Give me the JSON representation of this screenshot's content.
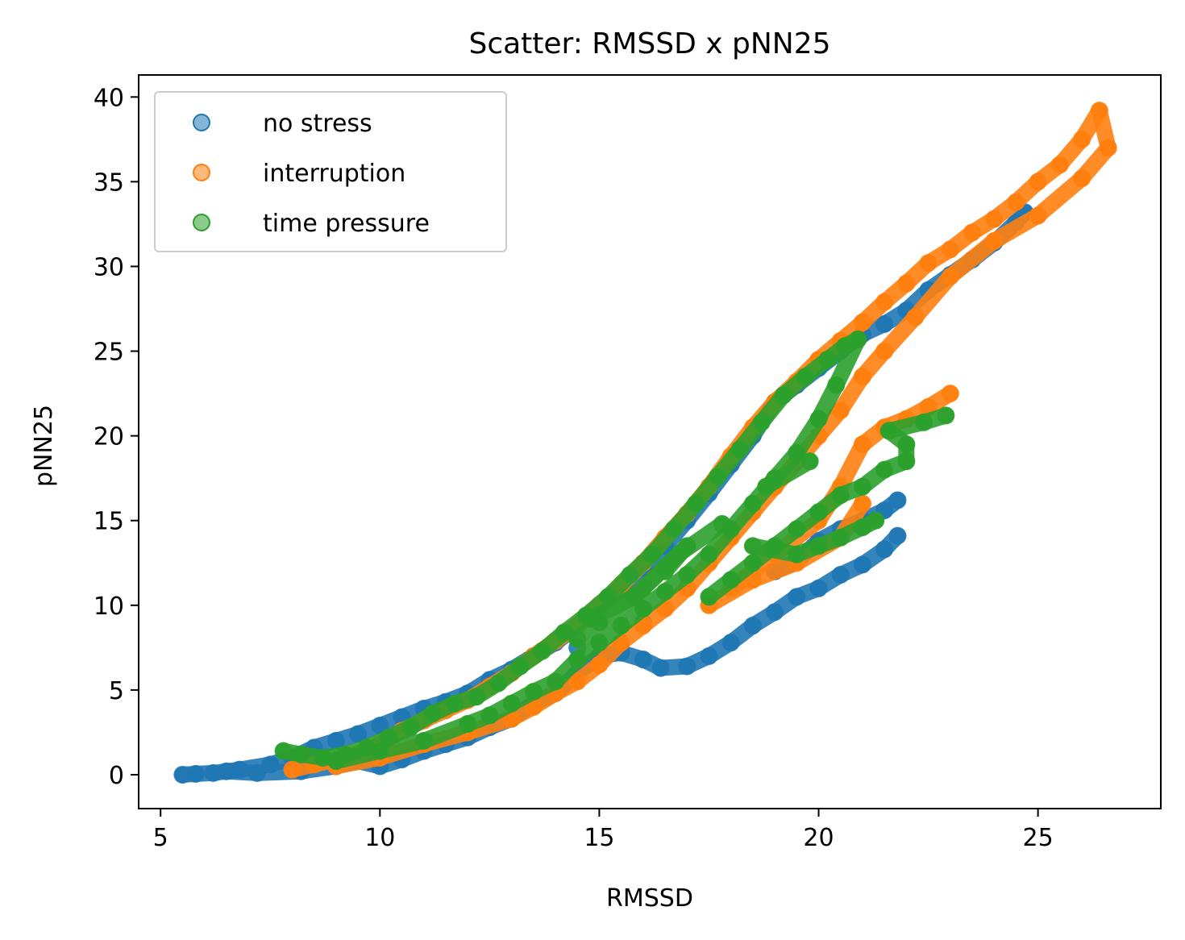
{
  "chart_data": {
    "type": "scatter",
    "title": "Scatter: RMSSD x pNN25",
    "xlabel": "RMSSD",
    "ylabel": "pNN25",
    "xlim": [
      4.5,
      27.8
    ],
    "ylim": [
      -2,
      41.3
    ],
    "xticks": [
      5,
      10,
      15,
      20,
      25
    ],
    "yticks": [
      0,
      5,
      10,
      15,
      20,
      25,
      30,
      35,
      40
    ],
    "grid": false,
    "legend_position": "upper-left",
    "series": [
      {
        "name": "no stress",
        "color": "#1f77b4",
        "points": [
          [
            5.5,
            0.0
          ],
          [
            5.8,
            0.05
          ],
          [
            6.2,
            0.1
          ],
          [
            6.8,
            0.3
          ],
          [
            7.5,
            0.6
          ],
          [
            8.0,
            1.0
          ],
          [
            8.5,
            1.6
          ],
          [
            9.0,
            2.0
          ],
          [
            9.5,
            2.4
          ],
          [
            10.0,
            2.9
          ],
          [
            10.5,
            3.4
          ],
          [
            11.0,
            3.9
          ],
          [
            11.5,
            4.3
          ],
          [
            12.0,
            4.8
          ],
          [
            12.5,
            5.6
          ],
          [
            13.0,
            6.2
          ],
          [
            13.5,
            7.0
          ],
          [
            14.0,
            7.8
          ],
          [
            14.5,
            8.8
          ],
          [
            15.0,
            10.0
          ],
          [
            15.5,
            11.0
          ],
          [
            16.0,
            12.2
          ],
          [
            16.5,
            13.5
          ],
          [
            17.0,
            15.0
          ],
          [
            17.5,
            16.6
          ],
          [
            18.0,
            18.3
          ],
          [
            18.5,
            20.0
          ],
          [
            19.0,
            22.0
          ],
          [
            19.5,
            23.0
          ],
          [
            20.0,
            24.0
          ],
          [
            20.5,
            25.0
          ],
          [
            21.0,
            26.0
          ],
          [
            21.5,
            26.6
          ],
          [
            22.0,
            27.4
          ],
          [
            22.5,
            28.6
          ],
          [
            23.0,
            29.5
          ],
          [
            23.5,
            30.4
          ],
          [
            24.0,
            31.4
          ],
          [
            24.5,
            32.6
          ],
          [
            24.7,
            33.2
          ],
          [
            6.5,
            0.2
          ],
          [
            7.2,
            0.1
          ],
          [
            8.2,
            0.2
          ],
          [
            9.0,
            0.5
          ],
          [
            9.5,
            0.8
          ],
          [
            10.0,
            0.5
          ],
          [
            10.5,
            0.9
          ],
          [
            11.0,
            1.4
          ],
          [
            11.5,
            1.8
          ],
          [
            12.0,
            2.2
          ],
          [
            12.5,
            2.8
          ],
          [
            13.0,
            3.3
          ],
          [
            13.5,
            4.2
          ],
          [
            14.0,
            4.8
          ],
          [
            14.5,
            6.0
          ],
          [
            15.0,
            7.0
          ],
          [
            15.5,
            7.2
          ],
          [
            16.0,
            6.8
          ],
          [
            16.4,
            6.3
          ],
          [
            17.0,
            6.4
          ],
          [
            17.5,
            7.0
          ],
          [
            18.0,
            7.8
          ],
          [
            18.5,
            8.8
          ],
          [
            19.0,
            9.6
          ],
          [
            19.5,
            10.5
          ],
          [
            20.0,
            11.0
          ],
          [
            20.5,
            11.8
          ],
          [
            21.0,
            12.4
          ],
          [
            21.5,
            13.3
          ],
          [
            21.8,
            14.1
          ],
          [
            19.0,
            12.0
          ],
          [
            19.5,
            12.6
          ],
          [
            20.0,
            13.8
          ],
          [
            20.5,
            14.5
          ],
          [
            21.0,
            15.0
          ],
          [
            21.5,
            15.6
          ],
          [
            21.8,
            16.2
          ],
          [
            12.0,
            4.5
          ],
          [
            14.5,
            7.5
          ],
          [
            16.0,
            9.0
          ]
        ]
      },
      {
        "name": "interruption",
        "color": "#ff7f0e",
        "points": [
          [
            8.0,
            0.3
          ],
          [
            8.5,
            0.6
          ],
          [
            9.0,
            0.9
          ],
          [
            9.5,
            1.2
          ],
          [
            10.0,
            1.8
          ],
          [
            10.5,
            2.6
          ],
          [
            11.0,
            3.2
          ],
          [
            11.5,
            3.8
          ],
          [
            12.0,
            4.4
          ],
          [
            12.5,
            5.2
          ],
          [
            13.0,
            6.0
          ],
          [
            13.5,
            7.0
          ],
          [
            14.0,
            7.9
          ],
          [
            14.5,
            8.8
          ],
          [
            15.0,
            10.0
          ],
          [
            15.5,
            11.2
          ],
          [
            16.0,
            12.5
          ],
          [
            16.5,
            14.0
          ],
          [
            17.0,
            15.4
          ],
          [
            17.5,
            17.0
          ],
          [
            18.0,
            18.8
          ],
          [
            18.5,
            20.5
          ],
          [
            19.0,
            22.0
          ],
          [
            19.5,
            23.2
          ],
          [
            20.0,
            24.5
          ],
          [
            20.5,
            25.6
          ],
          [
            21.0,
            26.7
          ],
          [
            21.5,
            27.9
          ],
          [
            22.0,
            29.0
          ],
          [
            22.5,
            30.2
          ],
          [
            23.0,
            31.0
          ],
          [
            23.5,
            32.0
          ],
          [
            24.0,
            32.8
          ],
          [
            24.5,
            33.8
          ],
          [
            25.0,
            35.0
          ],
          [
            25.5,
            36.0
          ],
          [
            26.0,
            37.5
          ],
          [
            26.4,
            39.2
          ],
          [
            26.6,
            37.0
          ],
          [
            26.0,
            35.2
          ],
          [
            25.0,
            33.0
          ],
          [
            24.0,
            31.5
          ],
          [
            23.0,
            29.4
          ],
          [
            22.2,
            27.0
          ],
          [
            21.5,
            25.0
          ],
          [
            21.0,
            23.5
          ],
          [
            20.5,
            21.5
          ],
          [
            20.0,
            20.0
          ],
          [
            19.5,
            18.5
          ],
          [
            19.0,
            17.0
          ],
          [
            18.5,
            15.5
          ],
          [
            18.0,
            14.0
          ],
          [
            17.5,
            12.5
          ],
          [
            17.0,
            11.0
          ],
          [
            16.5,
            9.8
          ],
          [
            16.0,
            8.8
          ],
          [
            15.5,
            7.8
          ],
          [
            15.0,
            6.5
          ],
          [
            14.5,
            5.5
          ],
          [
            14.0,
            4.8
          ],
          [
            13.5,
            4.0
          ],
          [
            13.0,
            3.3
          ],
          [
            12.0,
            2.5
          ],
          [
            11.0,
            1.8
          ],
          [
            10.0,
            1.0
          ],
          [
            9.0,
            0.5
          ],
          [
            18.0,
            11.0
          ],
          [
            19.0,
            13.0
          ],
          [
            20.0,
            15.0
          ],
          [
            20.5,
            17.0
          ],
          [
            21.0,
            19.5
          ],
          [
            21.5,
            20.5
          ],
          [
            22.0,
            21.0
          ],
          [
            22.5,
            21.7
          ],
          [
            23.0,
            22.5
          ],
          [
            21.0,
            16.0
          ],
          [
            20.5,
            14.0
          ],
          [
            19.5,
            12.5
          ],
          [
            18.5,
            11.5
          ],
          [
            17.5,
            10.0
          ]
        ]
      },
      {
        "name": "time pressure",
        "color": "#2ca02c",
        "points": [
          [
            7.8,
            1.4
          ],
          [
            8.2,
            1.2
          ],
          [
            8.7,
            1.0
          ],
          [
            9.2,
            1.2
          ],
          [
            9.7,
            1.6
          ],
          [
            10.2,
            2.2
          ],
          [
            10.7,
            2.8
          ],
          [
            11.2,
            3.6
          ],
          [
            11.7,
            4.2
          ],
          [
            12.2,
            4.6
          ],
          [
            12.7,
            5.4
          ],
          [
            13.2,
            6.4
          ],
          [
            13.7,
            7.3
          ],
          [
            14.2,
            8.4
          ],
          [
            14.7,
            9.4
          ],
          [
            15.2,
            10.5
          ],
          [
            15.7,
            11.8
          ],
          [
            16.2,
            13.0
          ],
          [
            16.7,
            14.5
          ],
          [
            17.2,
            16.0
          ],
          [
            17.7,
            17.6
          ],
          [
            18.2,
            19.2
          ],
          [
            18.7,
            20.8
          ],
          [
            19.2,
            22.4
          ],
          [
            19.7,
            23.5
          ],
          [
            20.2,
            24.5
          ],
          [
            20.6,
            25.3
          ],
          [
            20.9,
            25.7
          ],
          [
            20.4,
            23.0
          ],
          [
            20.0,
            21.0
          ],
          [
            19.5,
            19.0
          ],
          [
            19.0,
            17.5
          ],
          [
            18.5,
            16.0
          ],
          [
            18.0,
            14.5
          ],
          [
            17.5,
            13.0
          ],
          [
            17.0,
            11.8
          ],
          [
            16.5,
            10.8
          ],
          [
            16.0,
            9.8
          ],
          [
            15.5,
            8.8
          ],
          [
            15.0,
            7.8
          ],
          [
            14.5,
            6.8
          ],
          [
            14.0,
            5.5
          ],
          [
            13.5,
            4.9
          ],
          [
            13.0,
            4.2
          ],
          [
            12.5,
            3.5
          ],
          [
            12.0,
            3.0
          ],
          [
            11.0,
            2.0
          ],
          [
            10.0,
            1.4
          ],
          [
            9.0,
            0.8
          ],
          [
            17.5,
            10.5
          ],
          [
            18.0,
            11.5
          ],
          [
            18.5,
            12.5
          ],
          [
            19.0,
            13.5
          ],
          [
            19.5,
            14.5
          ],
          [
            20.0,
            15.5
          ],
          [
            20.5,
            16.5
          ],
          [
            21.0,
            17.0
          ],
          [
            21.5,
            18.0
          ],
          [
            22.0,
            18.5
          ],
          [
            22.0,
            19.5
          ],
          [
            21.6,
            20.3
          ],
          [
            22.4,
            20.8
          ],
          [
            22.9,
            21.2
          ],
          [
            18.5,
            13.5
          ],
          [
            19.5,
            13.0
          ],
          [
            20.0,
            13.5
          ],
          [
            20.5,
            14.0
          ],
          [
            21.0,
            14.6
          ],
          [
            21.3,
            15.0
          ],
          [
            16.5,
            12.0
          ],
          [
            17.0,
            13.5
          ],
          [
            16.0,
            11.0
          ],
          [
            15.0,
            9.0
          ],
          [
            14.5,
            8.0
          ],
          [
            18.8,
            17.0
          ],
          [
            19.8,
            18.5
          ],
          [
            17.8,
            14.8
          ],
          [
            16.8,
            13.0
          ],
          [
            15.8,
            10.5
          ],
          [
            14.8,
            9.2
          ]
        ]
      }
    ]
  }
}
